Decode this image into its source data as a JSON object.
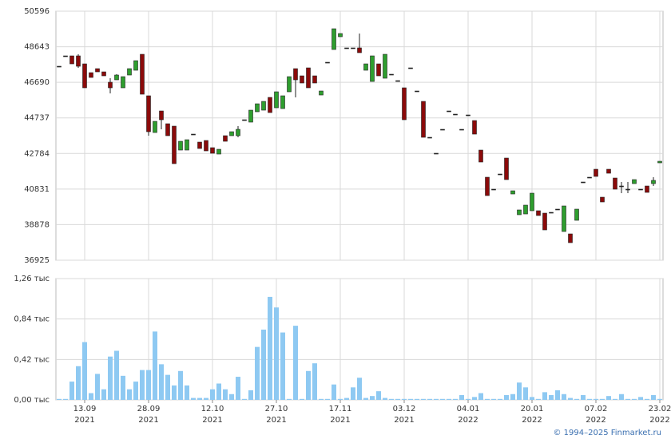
{
  "chart_data": [
    {
      "type": "candlestick",
      "up_color": "#2e9e2e",
      "down_color": "#8b0a0a",
      "flat_color": "#222222",
      "ylim": [
        36925,
        50596
      ],
      "yticks": [
        36925,
        38878,
        40831,
        42784,
        44737,
        46690,
        48643,
        50596
      ],
      "grid": true,
      "open": [
        47572,
        48142,
        48142,
        48142,
        47703,
        47221,
        47441,
        47265,
        46696,
        46827,
        46389,
        47090,
        47353,
        48229,
        45951,
        43935,
        45118,
        44417,
        44285,
        42971,
        42971,
        43847,
        43409,
        43497,
        43102,
        42752,
        43760,
        43760,
        43760,
        44636,
        44505,
        45074,
        45162,
        45863,
        45293,
        45249,
        46170,
        47441,
        47046,
        47484,
        47046,
        45994,
        47791,
        48492,
        49193,
        48580,
        48580,
        48580,
        47353,
        46739,
        47703,
        46915,
        47134,
        46783,
        46389,
        47484,
        46214,
        45644,
        43672,
        42796,
        44110,
        45118,
        44943,
        44110,
        44899,
        44592,
        42971,
        41481,
        40824,
        41656,
        42533,
        40561,
        39422,
        39465,
        39641,
        39641,
        39509,
        39553,
        39729,
        38501,
        38370,
        39115,
        41218,
        41481,
        41919,
        40385,
        41919,
        41437,
        40999,
        40824,
        41130,
        40824,
        40999,
        41130,
        42270
      ],
      "high": [
        47572,
        48142,
        48142,
        48229,
        47703,
        47221,
        47441,
        47265,
        46915,
        47134,
        47002,
        47441,
        47879,
        48229,
        45951,
        44548,
        45118,
        44417,
        44285,
        43453,
        43540,
        43847,
        43409,
        43497,
        43102,
        43014,
        43760,
        43979,
        44285,
        44636,
        45162,
        45512,
        45644,
        45863,
        46170,
        45951,
        47002,
        47441,
        47046,
        47484,
        47046,
        46214,
        47791,
        49631,
        49369,
        48580,
        48580,
        49369,
        47703,
        48142,
        47703,
        48229,
        47134,
        46783,
        46389,
        47484,
        46214,
        45644,
        43672,
        42796,
        44110,
        45118,
        44943,
        44110,
        44899,
        44592,
        42971,
        41481,
        40824,
        41656,
        42533,
        40736,
        39685,
        39948,
        40605,
        39641,
        39509,
        39553,
        39729,
        39904,
        38370,
        39729,
        41218,
        41481,
        41919,
        40385,
        41919,
        41437,
        41218,
        41218,
        41350,
        40824,
        40999,
        41481,
        42357
      ],
      "low": [
        47572,
        48142,
        47703,
        47484,
        46389,
        46958,
        47265,
        47046,
        46082,
        46827,
        46389,
        47090,
        47353,
        46038,
        43760,
        43935,
        44110,
        43760,
        42226,
        42971,
        42971,
        43847,
        43058,
        42927,
        42796,
        42752,
        43453,
        43760,
        43672,
        44636,
        44505,
        45074,
        45162,
        45030,
        45293,
        45249,
        46170,
        45863,
        46652,
        46389,
        46652,
        45994,
        47791,
        48492,
        49193,
        48580,
        48580,
        48317,
        47353,
        46739,
        47046,
        46915,
        47134,
        46783,
        44636,
        47484,
        46214,
        43672,
        43672,
        42796,
        44110,
        45118,
        44943,
        44110,
        44899,
        43847,
        42314,
        40473,
        40824,
        41656,
        41350,
        40561,
        39422,
        39465,
        39641,
        39378,
        38589,
        39553,
        39729,
        38501,
        37888,
        39115,
        41218,
        41481,
        41525,
        40123,
        41700,
        40824,
        40605,
        40605,
        41130,
        40824,
        40648,
        40999,
        42270
      ],
      "close": [
        47572,
        48142,
        47703,
        47572,
        46389,
        46958,
        47265,
        47046,
        46389,
        47090,
        47002,
        47441,
        47879,
        46038,
        43979,
        44548,
        44636,
        43760,
        42226,
        43453,
        43540,
        43847,
        43058,
        42927,
        42796,
        43014,
        43453,
        43979,
        44110,
        44636,
        45162,
        45512,
        45644,
        45030,
        46170,
        45951,
        47002,
        46827,
        46652,
        46389,
        46652,
        46214,
        47791,
        49631,
        49369,
        48580,
        48580,
        48317,
        47703,
        48142,
        47046,
        48229,
        47134,
        46783,
        44636,
        47484,
        46214,
        43672,
        43672,
        42796,
        44110,
        45118,
        44943,
        44110,
        44899,
        43847,
        42314,
        40473,
        40824,
        41656,
        41350,
        40736,
        39685,
        39948,
        40605,
        39378,
        38589,
        39553,
        39729,
        39904,
        37888,
        39729,
        41218,
        41481,
        41525,
        40123,
        41700,
        40824,
        40999,
        40824,
        41350,
        40824,
        40648,
        41306,
        42357
      ]
    },
    {
      "type": "bar",
      "color": "#8ec9f2",
      "ylim": [
        0,
        1.26
      ],
      "yticks": [
        {
          "value": 0,
          "label": "0,00 тыс"
        },
        {
          "value": 0.42,
          "label": "0,42 тыс"
        },
        {
          "value": 0.84,
          "label": "0,84 тыс"
        },
        {
          "value": 1.26,
          "label": "1,26 тыс"
        }
      ],
      "grid": true,
      "categories": [
        null,
        null,
        null,
        null,
        "13.09",
        null,
        null,
        null,
        null,
        null,
        null,
        null,
        null,
        null,
        "28.09",
        null,
        null,
        null,
        null,
        null,
        null,
        null,
        null,
        null,
        "12.10",
        null,
        null,
        null,
        null,
        null,
        null,
        null,
        null,
        null,
        "27.10",
        null,
        null,
        null,
        null,
        null,
        null,
        null,
        null,
        null,
        "17.11",
        null,
        null,
        null,
        null,
        null,
        null,
        null,
        null,
        null,
        "03.12",
        null,
        null,
        null,
        null,
        null,
        null,
        null,
        null,
        null,
        "04.01",
        null,
        null,
        null,
        null,
        null,
        null,
        null,
        null,
        null,
        "20.01",
        null,
        null,
        null,
        null,
        null,
        null,
        null,
        null,
        null,
        "07.02",
        null,
        null,
        null,
        null,
        null,
        null,
        null,
        null,
        null,
        "23.02"
      ],
      "category_years": [
        null,
        null,
        null,
        null,
        "2021",
        null,
        null,
        null,
        null,
        null,
        null,
        null,
        null,
        null,
        "2021",
        null,
        null,
        null,
        null,
        null,
        null,
        null,
        null,
        null,
        "2021",
        null,
        null,
        null,
        null,
        null,
        null,
        null,
        null,
        null,
        "2021",
        null,
        null,
        null,
        null,
        null,
        null,
        null,
        null,
        null,
        "2021",
        null,
        null,
        null,
        null,
        null,
        null,
        null,
        null,
        null,
        "2021",
        null,
        null,
        null,
        null,
        null,
        null,
        null,
        null,
        null,
        "2022",
        null,
        null,
        null,
        null,
        null,
        null,
        null,
        null,
        null,
        "2022",
        null,
        null,
        null,
        null,
        null,
        null,
        null,
        null,
        null,
        "2022",
        null,
        null,
        null,
        null,
        null,
        null,
        null,
        null,
        null,
        "2022"
      ],
      "values": [
        0.01,
        0.01,
        0.19,
        0.35,
        0.6,
        0.07,
        0.27,
        0.11,
        0.45,
        0.51,
        0.25,
        0.11,
        0.19,
        0.31,
        0.31,
        0.71,
        0.37,
        0.26,
        0.15,
        0.3,
        0.15,
        0.02,
        0.02,
        0.02,
        0.11,
        0.17,
        0.11,
        0.06,
        0.24,
        0.01,
        0.1,
        0.55,
        0.73,
        1.07,
        0.96,
        0.7,
        0.01,
        0.77,
        0.01,
        0.3,
        0.38,
        0.01,
        0.01,
        0.16,
        0.01,
        0.02,
        0.13,
        0.23,
        0.02,
        0.04,
        0.09,
        0.02,
        0.01,
        0.01,
        0.01,
        0.01,
        0.01,
        0.01,
        0.01,
        0.01,
        0.01,
        0.01,
        0.01,
        0.05,
        0.01,
        0.03,
        0.07,
        0.01,
        0.01,
        0.01,
        0.05,
        0.06,
        0.18,
        0.13,
        0.03,
        0.01,
        0.08,
        0.05,
        0.1,
        0.06,
        0.02,
        0.01,
        0.05,
        0.01,
        0.01,
        0.01,
        0.04,
        0.01,
        0.06,
        0.01,
        0.01,
        0.03,
        0.01,
        0.05,
        0.01
      ]
    }
  ],
  "footer": "© 1994–2025 Finmarket.ru"
}
